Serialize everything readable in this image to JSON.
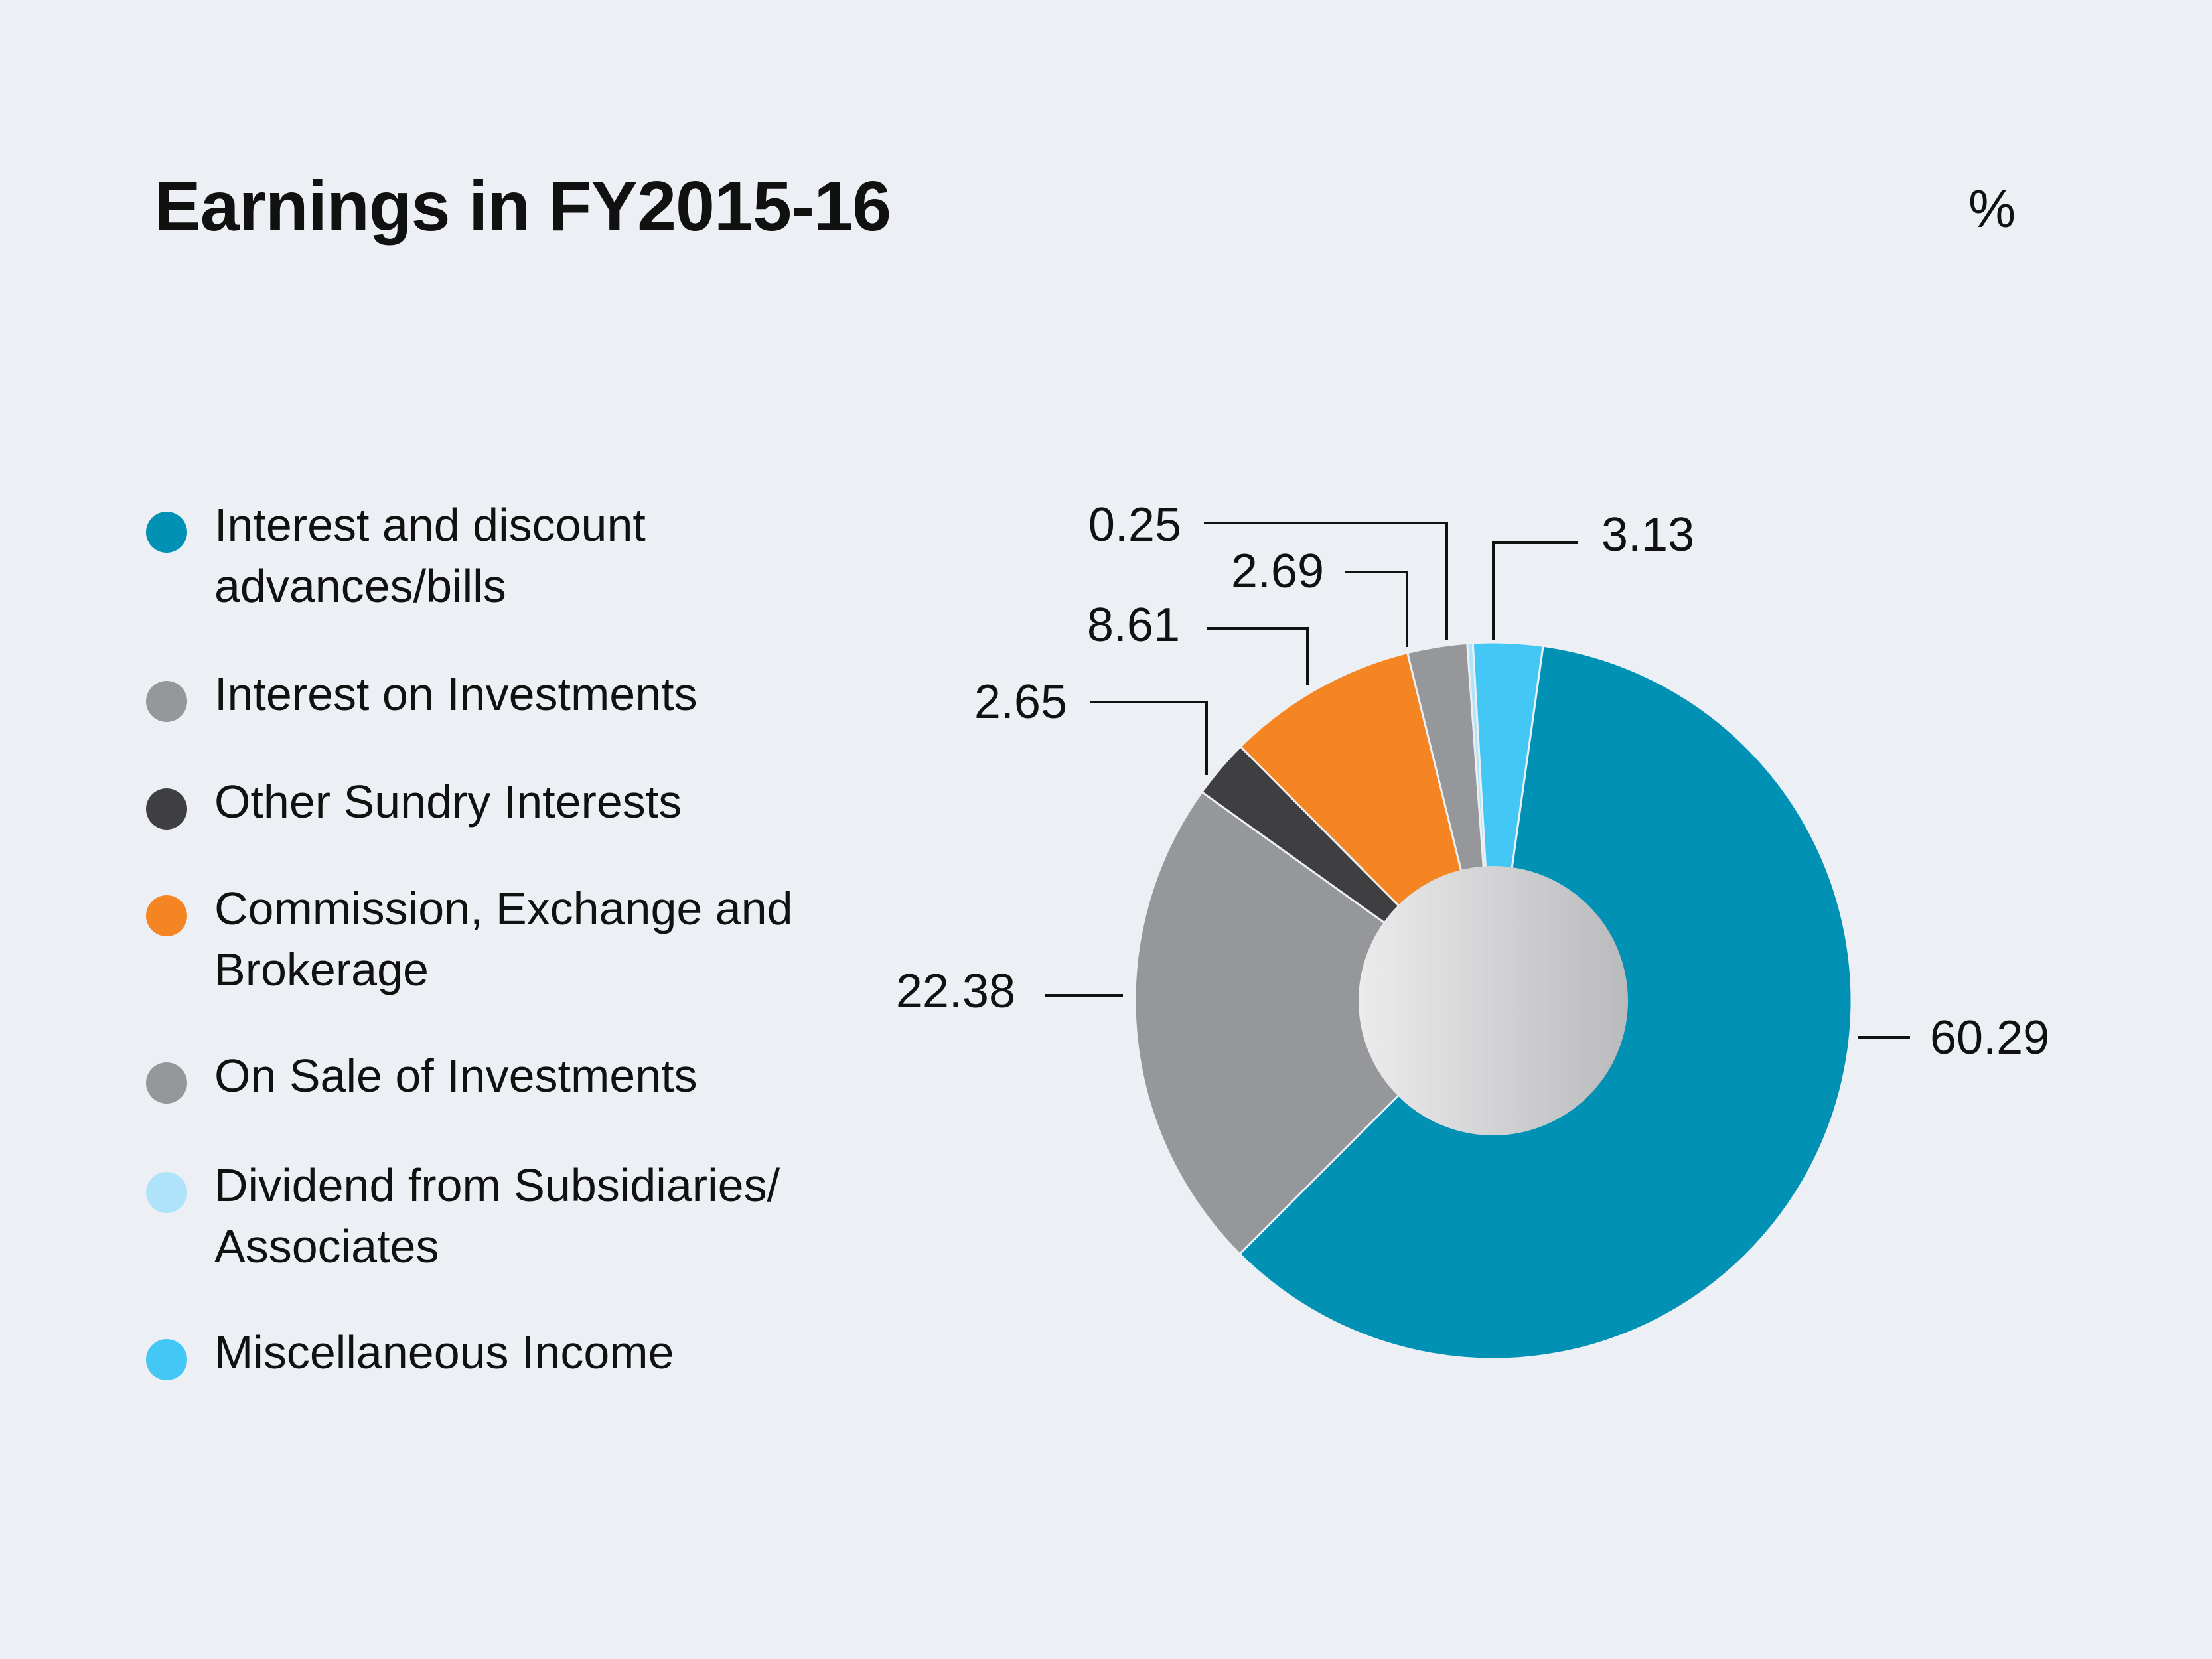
{
  "chart_data": {
    "type": "pie",
    "title": "Earnings in FY2015-16",
    "unit": "%",
    "donut": true,
    "legend_position": "left",
    "series": [
      {
        "name": "Interest and discount\nadvances/bills",
        "value": 60.29,
        "label": "60.29",
        "color": "#0091b5"
      },
      {
        "name": "Interest on Investments",
        "value": 22.38,
        "label": "22.38",
        "color": "#96979a"
      },
      {
        "name": "Other Sundry Interests",
        "value": 2.65,
        "label": "2.65",
        "color": "#3f3f42"
      },
      {
        "name": "Commission, Exchange and\nBrokerage",
        "value": 8.61,
        "label": "8.61",
        "color": "#f58523"
      },
      {
        "name": "On Sale of Investments",
        "value": 2.69,
        "label": "2.69",
        "color": "#96979a"
      },
      {
        "name": "Dividend from Subsidiaries/\nAssociates",
        "value": 0.25,
        "label": "0.25",
        "color": "#aee3f9"
      },
      {
        "name": "Miscellaneous Income",
        "value": 3.13,
        "label": "3.13",
        "color": "#43c7f4"
      }
    ]
  }
}
